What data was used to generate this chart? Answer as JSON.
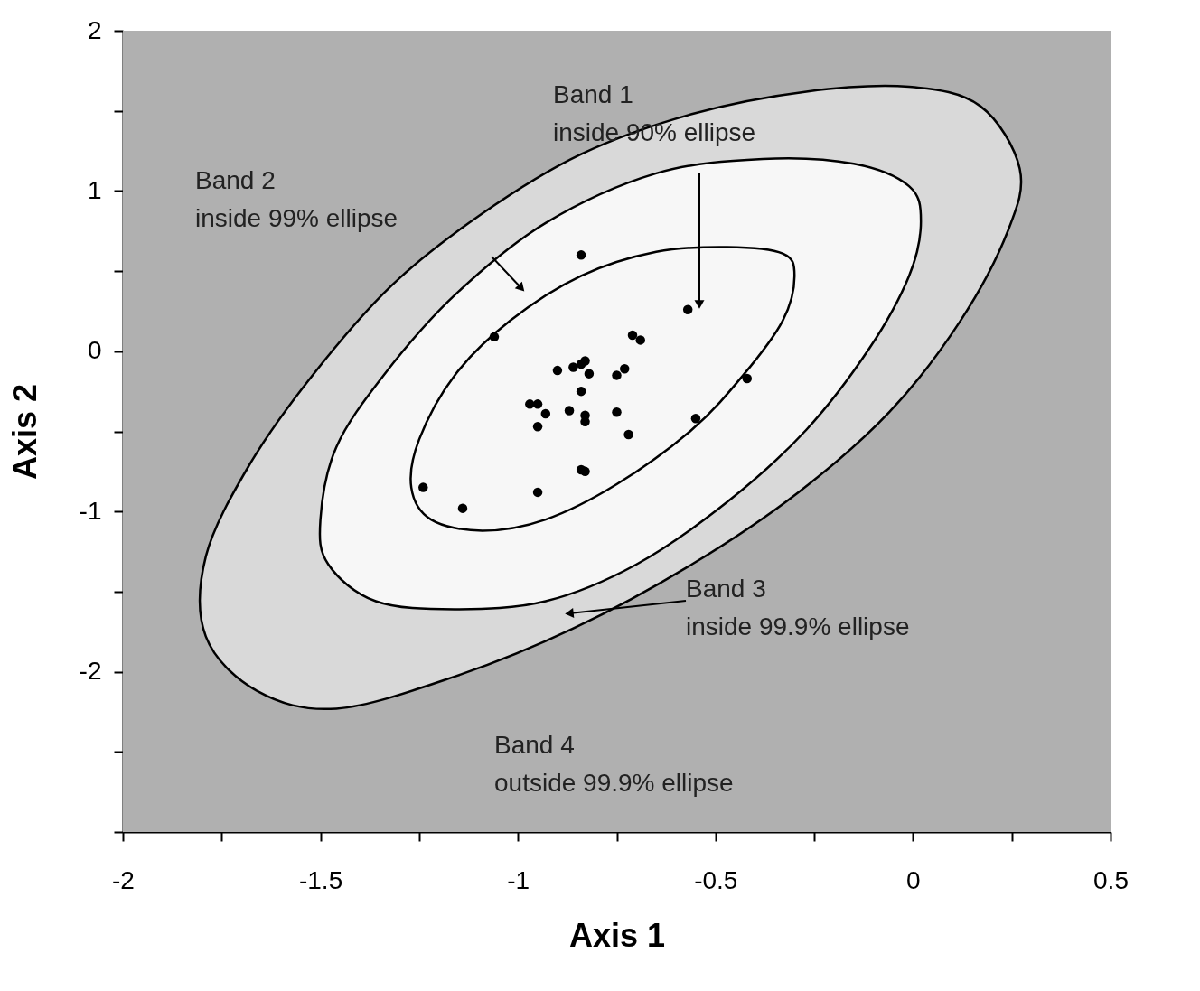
{
  "chart_data": {
    "type": "scatter",
    "xlabel": "Axis 1",
    "ylabel": "Axis 2",
    "xlim": [
      -2,
      0.5
    ],
    "ylim": [
      -3,
      2
    ],
    "xticks": [
      -2,
      {
        "value": -1.75,
        "label": null
      },
      -1.5,
      {
        "value": -1.25,
        "label": null
      },
      -1,
      {
        "value": -0.75,
        "label": null
      },
      -0.5,
      {
        "value": -0.25,
        "label": null
      },
      0,
      {
        "value": 0.25,
        "label": null
      },
      0.5
    ],
    "yticks": [
      {
        "value": -3,
        "label": null
      },
      {
        "value": -2.5,
        "label": null
      },
      -2,
      {
        "value": -1.5,
        "label": null
      },
      -1,
      {
        "value": -0.5,
        "label": null
      },
      0,
      {
        "value": 0.5,
        "label": null
      },
      1,
      {
        "value": 1.5,
        "label": null
      },
      2
    ],
    "grid": false,
    "series": [
      {
        "type": "area",
        "color": "#d9d9d9",
        "x": [
          0.27,
          0.24,
          0.12,
          -0.06,
          -0.29,
          -0.56,
          -0.86,
          -1.16,
          -1.46,
          -1.66,
          -1.79,
          -1.79,
          -1.68,
          -1.52,
          -1.32,
          -1.09,
          -0.84,
          -0.56,
          -0.27,
          -0.01,
          0.17
        ],
        "values": [
          1.14,
          0.75,
          0.19,
          -0.38,
          -0.88,
          -1.33,
          -1.73,
          -2.03,
          -2.23,
          -2.12,
          -1.78,
          -1.28,
          -0.71,
          -0.15,
          0.41,
          0.86,
          1.23,
          1.48,
          1.62,
          1.65,
          1.53
        ]
      },
      {
        "type": "area",
        "color": "#f7f7f7",
        "x": [
          0.02,
          -0.01,
          -0.11,
          -0.27,
          -0.47,
          -0.7,
          -0.93,
          -1.16,
          -1.36,
          -1.48,
          -1.5,
          -1.46,
          -1.34,
          -1.16,
          -0.93,
          -0.65,
          -0.38,
          -0.15,
          -0.01
        ],
        "values": [
          0.81,
          0.47,
          0.02,
          -0.49,
          -0.94,
          -1.33,
          -1.56,
          -1.61,
          -1.56,
          -1.33,
          -1.05,
          -0.6,
          -0.15,
          0.35,
          0.8,
          1.11,
          1.2,
          1.17,
          1.03
        ]
      },
      {
        "type": "area",
        "color": "#f7f7f7",
        "x": [
          -0.3,
          -0.33,
          -0.43,
          -0.56,
          -0.75,
          -0.93,
          -1.09,
          -1.22,
          -1.27,
          -1.25,
          -1.16,
          -1.02,
          -0.84,
          -0.65,
          -0.47,
          -0.33
        ],
        "values": [
          0.47,
          0.19,
          -0.15,
          -0.49,
          -0.83,
          -1.05,
          -1.12,
          -1.05,
          -0.85,
          -0.55,
          -0.15,
          0.19,
          0.47,
          0.62,
          0.65,
          0.61
        ]
      },
      {
        "color": "#000000",
        "marker": "circle",
        "x": [
          -0.84,
          -1.06,
          -0.57,
          -0.71,
          -0.69,
          -0.42,
          -0.9,
          -0.86,
          -0.84,
          -0.83,
          -0.82,
          -0.75,
          -0.73,
          -0.84,
          -0.97,
          -0.95,
          -0.93,
          -0.95,
          -0.87,
          -0.83,
          -0.83,
          -0.75,
          -0.72,
          -0.55,
          -0.84,
          -0.83,
          -0.95,
          -1.24,
          -1.14
        ],
        "values": [
          0.6,
          0.09,
          0.26,
          0.1,
          0.07,
          -0.17,
          -0.12,
          -0.1,
          -0.08,
          -0.06,
          -0.14,
          -0.15,
          -0.11,
          -0.25,
          -0.33,
          -0.33,
          -0.39,
          -0.47,
          -0.37,
          -0.4,
          -0.44,
          -0.38,
          -0.52,
          -0.42,
          -0.74,
          -0.75,
          -0.88,
          -0.85,
          -0.98
        ]
      }
    ],
    "annotations": [
      "Band 1\ninside 90% ellipse",
      "Band 2\ninside 99% ellipse",
      "Band 3\ninside 99.9% ellipse",
      "Band 4\noutside 99.9% ellipse"
    ]
  }
}
